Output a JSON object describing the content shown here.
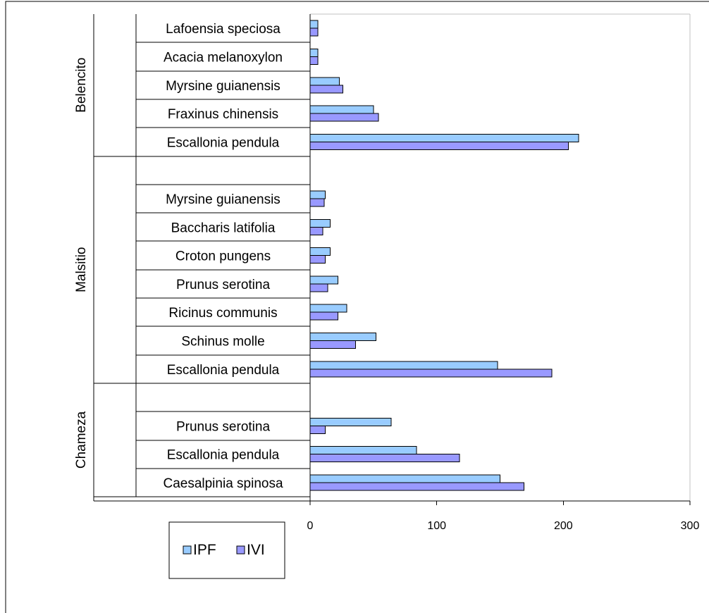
{
  "chart_data": {
    "type": "bar",
    "orientation": "horizontal",
    "xlim": [
      0,
      300
    ],
    "x_ticks": [
      0,
      100,
      200,
      300
    ],
    "legend_position": "bottom-left",
    "groups": [
      {
        "name": "Belencito",
        "rows": [
          {
            "label": "Lafoensia speciosa",
            "values": [
              6,
              6
            ]
          },
          {
            "label": "Acacia melanoxylon",
            "values": [
              6,
              6
            ]
          },
          {
            "label": "Myrsine guianensis",
            "values": [
              23,
              26
            ]
          },
          {
            "label": "Fraxinus chinensis",
            "values": [
              50,
              54
            ]
          },
          {
            "label": "Escallonia pendula",
            "values": [
              212,
              204
            ]
          }
        ]
      },
      {
        "name": "Malsitio",
        "rows": [
          {
            "label": "",
            "values": null
          },
          {
            "label": "Myrsine guianensis",
            "values": [
              12,
              11
            ]
          },
          {
            "label": "Baccharis latifolia",
            "values": [
              16,
              10
            ]
          },
          {
            "label": "Croton pungens",
            "values": [
              16,
              12
            ]
          },
          {
            "label": "Prunus serotina",
            "values": [
              22,
              14
            ]
          },
          {
            "label": "Ricinus communis",
            "values": [
              29,
              22
            ]
          },
          {
            "label": "Schinus molle",
            "values": [
              52,
              36
            ]
          },
          {
            "label": "Escallonia pendula",
            "values": [
              148,
              191
            ]
          }
        ]
      },
      {
        "name": "Chameza",
        "rows": [
          {
            "label": "",
            "values": null
          },
          {
            "label": "Prunus serotina",
            "values": [
              64,
              12
            ]
          },
          {
            "label": "Escallonia pendula",
            "values": [
              84,
              118
            ]
          },
          {
            "label": "Caesalpinia spinosa",
            "values": [
              150,
              169
            ]
          }
        ]
      }
    ],
    "series": [
      {
        "name": "IPF",
        "color": "#99ccff"
      },
      {
        "name": "IVI",
        "color": "#9999ff"
      }
    ]
  }
}
